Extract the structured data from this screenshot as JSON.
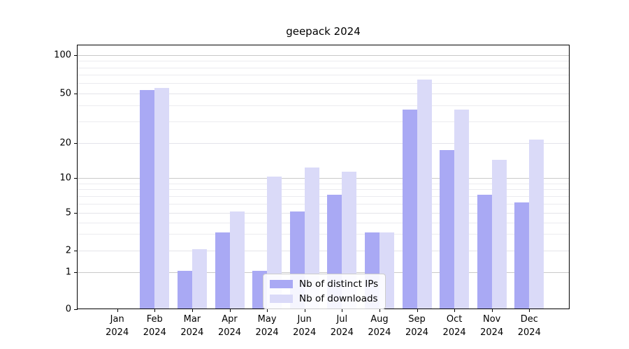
{
  "title": "geepack 2024",
  "chart_data": {
    "type": "bar",
    "title": "geepack 2024",
    "categories": [
      "Jan",
      "Feb",
      "Mar",
      "Apr",
      "May",
      "Jun",
      "Jul",
      "Aug",
      "Sep",
      "Oct",
      "Nov",
      "Dec"
    ],
    "x_year_label": "2024",
    "series": [
      {
        "name": "Nb of distinct IPs",
        "color": "#a9a9f4",
        "values": [
          0,
          52,
          1,
          3,
          1,
          5,
          7,
          3,
          36,
          17,
          7,
          6
        ]
      },
      {
        "name": "Nb of downloads",
        "color": "#dadaf8",
        "values": [
          0,
          54,
          2,
          5,
          10,
          12,
          11,
          3,
          63,
          36,
          14,
          21
        ]
      }
    ],
    "xlabel": "",
    "ylabel": "",
    "y_axis": {
      "scale": "symlog",
      "ticks": [
        0,
        1,
        2,
        5,
        10,
        20,
        50,
        100
      ],
      "minor_gridlines": [
        3,
        4,
        6,
        7,
        8,
        9,
        30,
        40,
        60,
        70,
        80,
        90
      ],
      "ylim": [
        0,
        120
      ]
    },
    "grid": true,
    "legend_position": "lower-center"
  },
  "colors": {
    "series_dark": "#a9a9f4",
    "series_light": "#dadaf8",
    "grid_minor": "#ebebef",
    "grid_decade": "#c9c9c9",
    "axis": "#000000",
    "background": "#ffffff"
  }
}
